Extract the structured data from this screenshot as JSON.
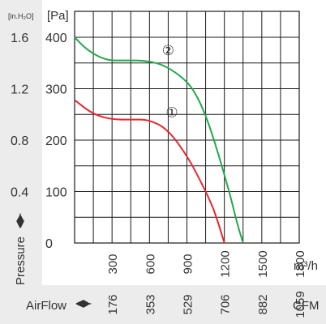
{
  "chart_data": {
    "type": "line",
    "x_unit": "m³/h",
    "x_unit_secondary": "CFM",
    "y_unit": "[Pa]",
    "y_unit_secondary": "[in.H₂O]",
    "y_axis_label": "Pressure",
    "x_axis_label": "AirFlow",
    "xlim": [
      0,
      1800
    ],
    "ylim": [
      0,
      400
    ],
    "x_ticks": [
      "300",
      "600",
      "900",
      "1200",
      "1500",
      "1800"
    ],
    "x_ticks_secondary": [
      "176",
      "353",
      "529",
      "706",
      "882",
      "1059"
    ],
    "y_ticks": [
      "0",
      "100",
      "200",
      "300",
      "400"
    ],
    "y_ticks_secondary": [
      "0.4",
      "0.8",
      "1.2",
      "1.6"
    ],
    "grid": true,
    "series": [
      {
        "name": "①",
        "color": "#e8262d",
        "points": [
          [
            0,
            278
          ],
          [
            150,
            250
          ],
          [
            300,
            240
          ],
          [
            450,
            240
          ],
          [
            600,
            240
          ],
          [
            750,
            220
          ],
          [
            900,
            170
          ],
          [
            1000,
            125
          ],
          [
            1100,
            75
          ],
          [
            1150,
            40
          ],
          [
            1200,
            0
          ]
        ]
      },
      {
        "name": "②",
        "color": "#22a94a",
        "points": [
          [
            0,
            400
          ],
          [
            100,
            375
          ],
          [
            250,
            355
          ],
          [
            400,
            355
          ],
          [
            550,
            355
          ],
          [
            700,
            348
          ],
          [
            850,
            325
          ],
          [
            950,
            300
          ],
          [
            1050,
            250
          ],
          [
            1150,
            175
          ],
          [
            1250,
            90
          ],
          [
            1300,
            40
          ],
          [
            1350,
            0
          ]
        ]
      }
    ]
  }
}
